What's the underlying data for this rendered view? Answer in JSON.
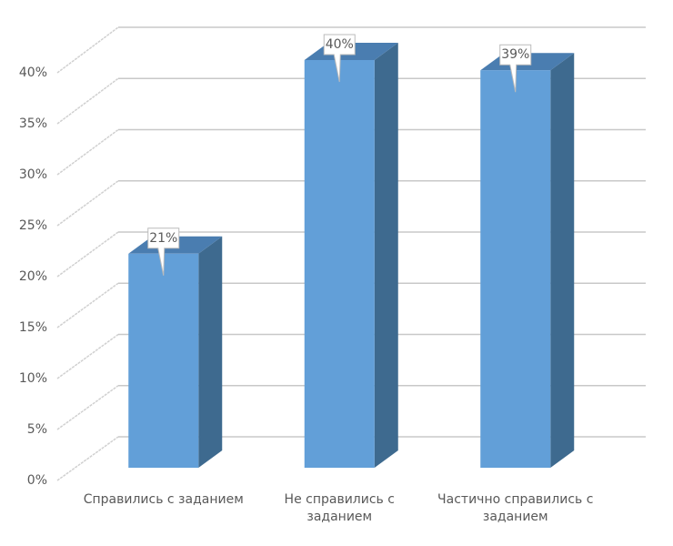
{
  "chart_data": {
    "type": "bar3d",
    "categories": [
      "Справились с заданием",
      "Не справились с заданием",
      "Частично справились с заданием"
    ],
    "values": [
      21,
      40,
      39
    ],
    "value_labels": [
      "21%",
      "40%",
      "39%"
    ],
    "color": "#629fd8",
    "ylim": [
      0,
      40
    ],
    "yticks": [
      {
        "value": 0,
        "label": "0%"
      },
      {
        "value": 5,
        "label": "5%"
      },
      {
        "value": 10,
        "label": "10%"
      },
      {
        "value": 15,
        "label": "15%"
      },
      {
        "value": 20,
        "label": "20%"
      },
      {
        "value": 25,
        "label": "25%"
      },
      {
        "value": 30,
        "label": "30%"
      },
      {
        "value": 35,
        "label": "35%"
      },
      {
        "value": 40,
        "label": "40%"
      }
    ],
    "grid": true
  }
}
